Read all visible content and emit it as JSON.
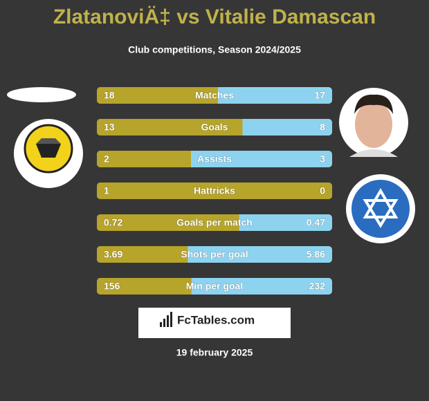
{
  "header": {
    "title": "ZlatanoviÄ‡ vs Vitalie Damascan",
    "subtitle": "Club competitions, Season 2024/2025"
  },
  "rows": [
    {
      "label": "Matches",
      "left": 18,
      "right": 17
    },
    {
      "label": "Goals",
      "left": 13,
      "right": 8
    },
    {
      "label": "Assists",
      "left": 2,
      "right": 3
    },
    {
      "label": "Hattricks",
      "left": 1,
      "right": 0
    },
    {
      "label": "Goals per match",
      "left": 0.72,
      "right": 0.47
    },
    {
      "label": "Shots per goal",
      "left": 3.69,
      "right": 5.86
    },
    {
      "label": "Min per goal",
      "left": 156,
      "right": 232
    }
  ],
  "brand": "FcTables.com",
  "date": "19 february 2025"
}
